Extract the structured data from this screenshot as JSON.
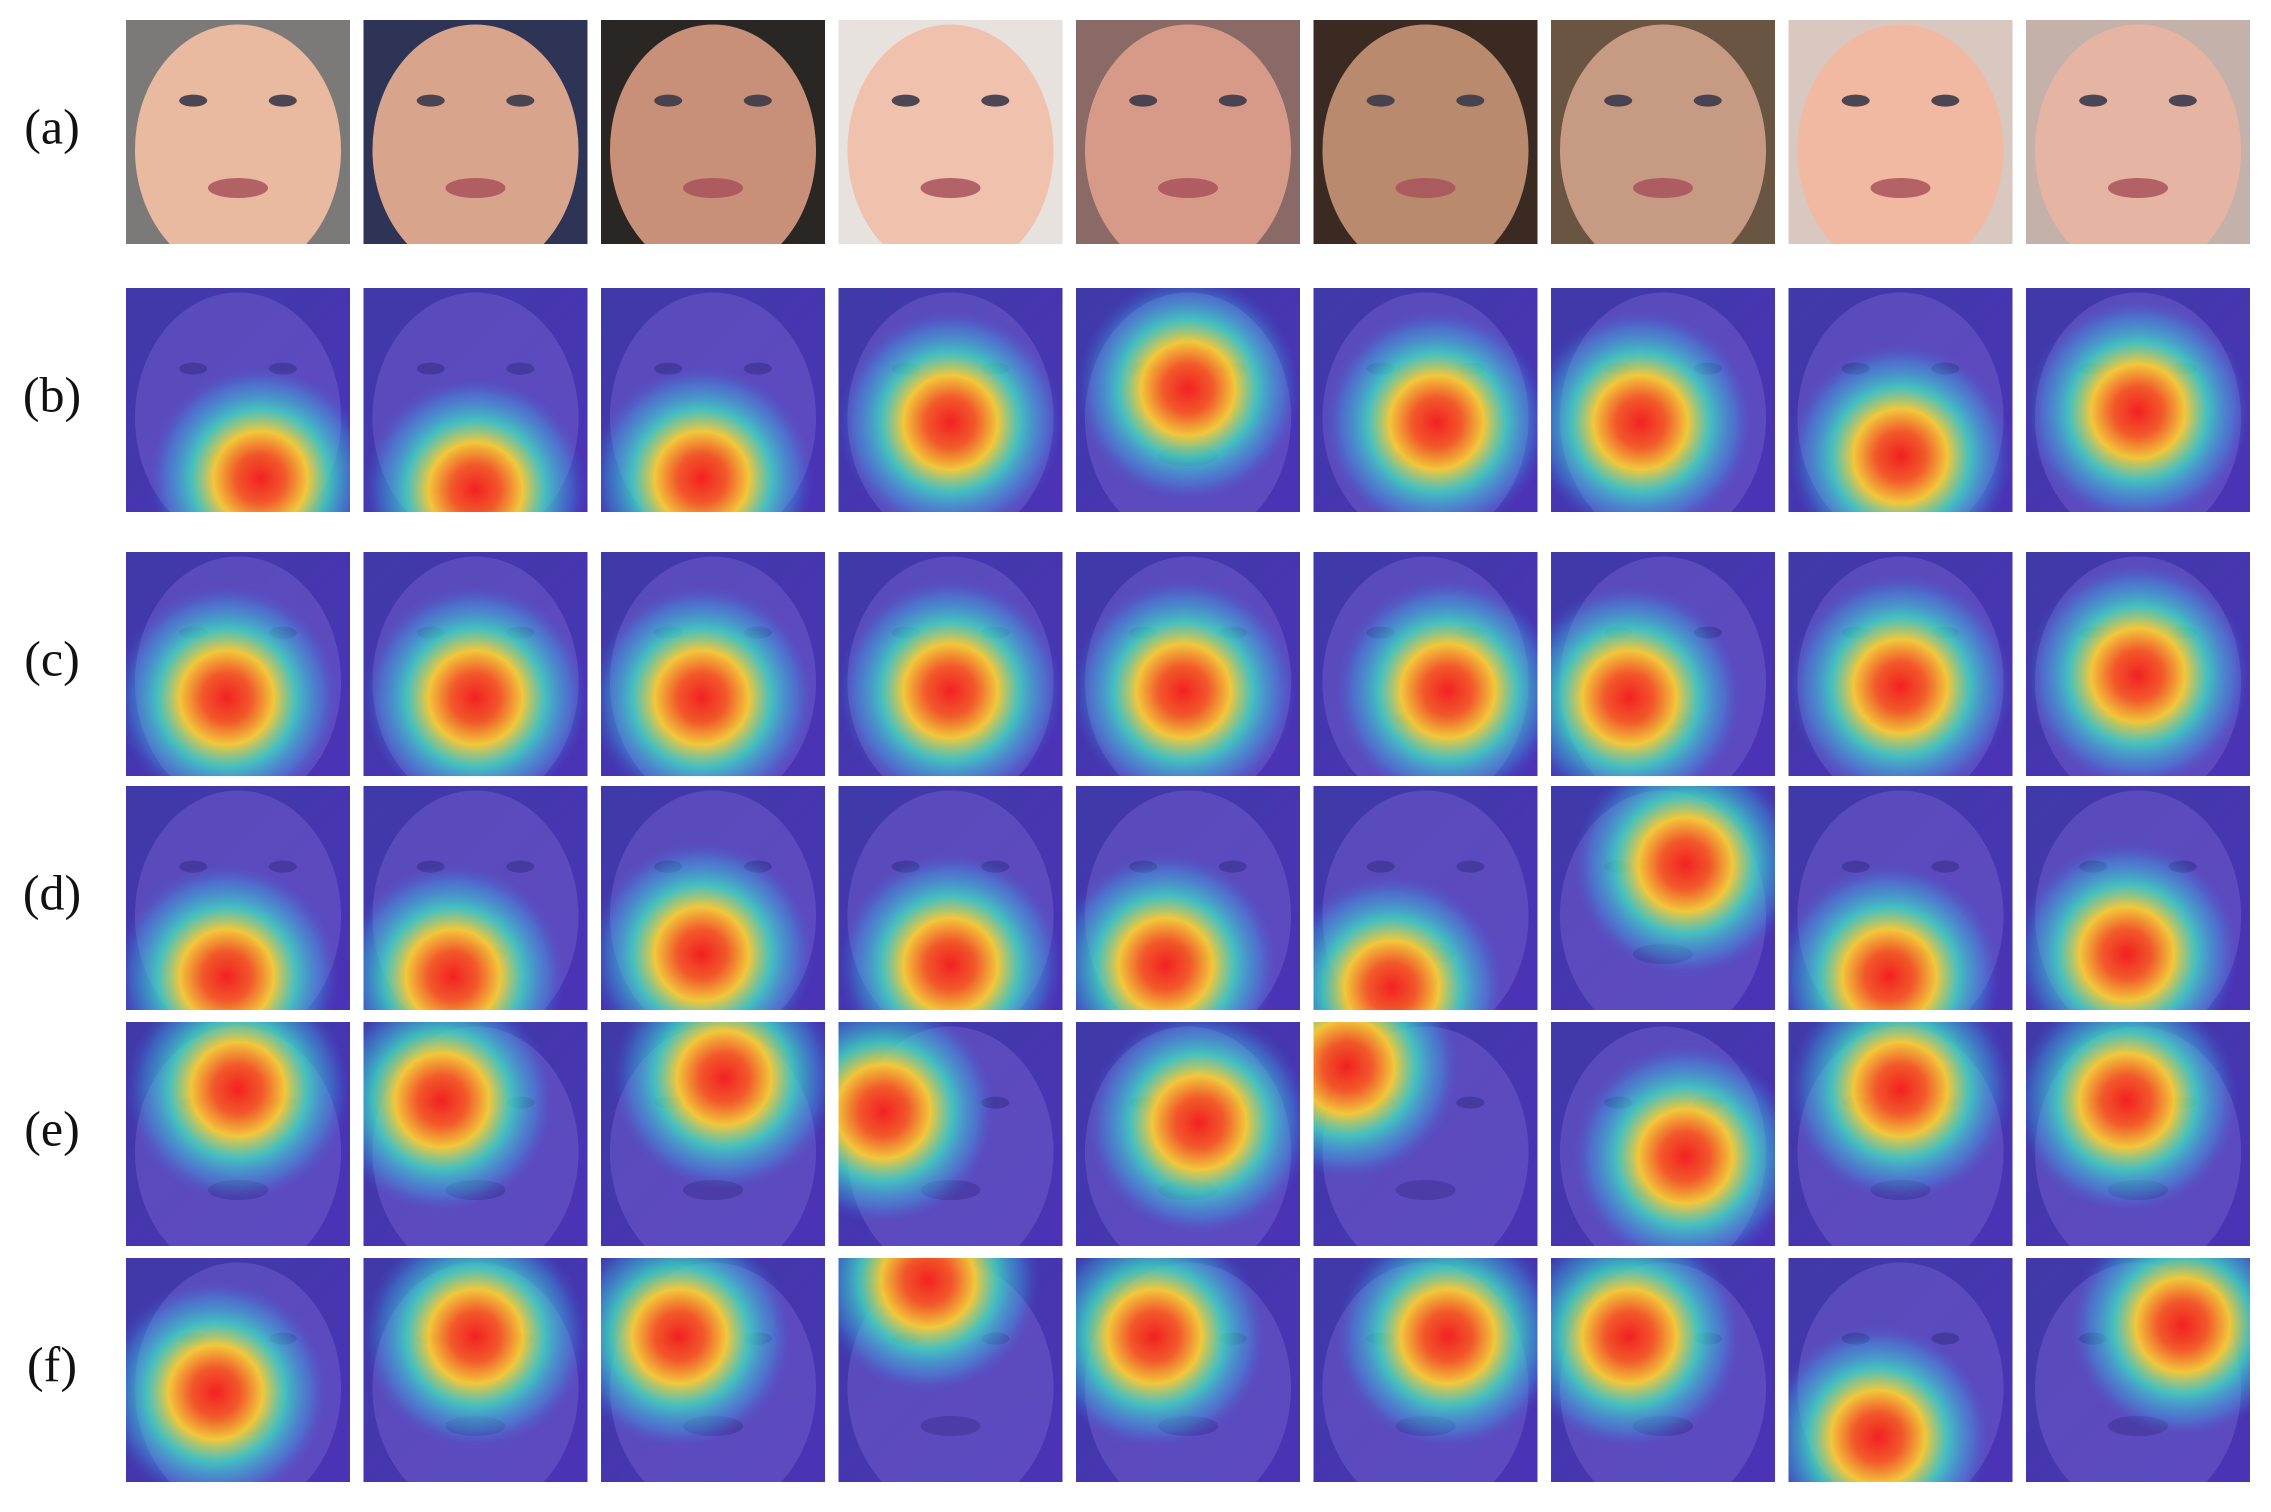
{
  "row_labels": [
    "(a)",
    "(b)",
    "(c)",
    "(d)",
    "(e)",
    "(f)"
  ]
}
